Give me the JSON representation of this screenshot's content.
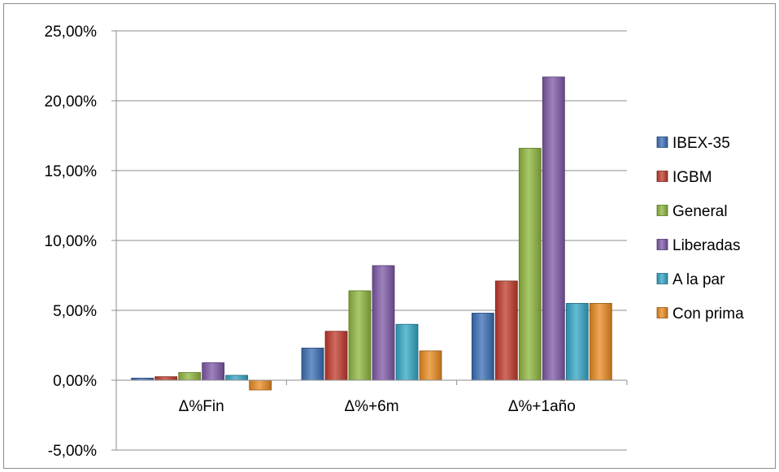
{
  "chart_data": {
    "type": "bar",
    "title": "",
    "xlabel": "",
    "ylabel": "",
    "categories": [
      "Δ%Fin",
      "Δ%+6m",
      "Δ%+1año"
    ],
    "ylim": [
      -0.05,
      0.25
    ],
    "yticks": [
      -0.05,
      0.0,
      0.05,
      0.1,
      0.15,
      0.2,
      0.25
    ],
    "ytick_labels": [
      "-5,00%",
      "0,00%",
      "5,00%",
      "10,00%",
      "15,00%",
      "20,00%",
      "25,00%"
    ],
    "grid": true,
    "legend_position": "right",
    "series": [
      {
        "name": "IBEX-35",
        "color": "#3a6db5",
        "values": [
          0.0015,
          0.023,
          0.048
        ]
      },
      {
        "name": "IGBM",
        "color": "#c0392b",
        "values": [
          0.0025,
          0.035,
          0.071
        ]
      },
      {
        "name": "General",
        "color": "#8db53c",
        "values": [
          0.0055,
          0.064,
          0.166
        ]
      },
      {
        "name": "Liberadas",
        "color": "#7d58a6",
        "values": [
          0.0125,
          0.082,
          0.217
        ]
      },
      {
        "name": "A la par",
        "color": "#33a5c4",
        "values": [
          0.0035,
          0.04,
          0.055
        ]
      },
      {
        "name": "Con prima",
        "color": "#e8891f",
        "values": [
          -0.007,
          0.021,
          0.055
        ]
      }
    ]
  }
}
